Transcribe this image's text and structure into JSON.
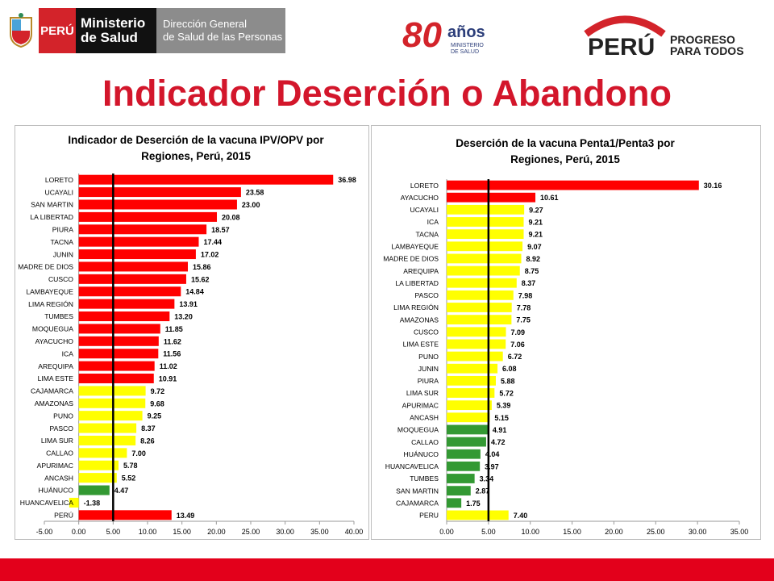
{
  "header": {
    "peru_label": "PERÚ",
    "ministry_line1": "Ministerio",
    "ministry_line2": "de Salud",
    "direction_line1": "Dirección General",
    "direction_line2": "de Salud de las Personas",
    "anniv_number": "80",
    "anniv_word": "años",
    "anniv_sub1": "MINISTERIO",
    "anniv_sub2": "DE SALUD",
    "brand_word": "PERÚ",
    "brand_slogan1": "PROGRESO",
    "brand_slogan2": "PARA TODOS"
  },
  "page_title": "Indicador Deserción o Abandono",
  "colors": {
    "high": "#ff0000",
    "medium": "#ffff00",
    "low": "#339933",
    "title_red": "#d3162b",
    "reference_line": "#000000"
  },
  "chart_data": [
    {
      "type": "bar",
      "orientation": "horizontal",
      "title": "Indicador de Deserción de la vacuna IPV/OPV por Regiones, Perú, 2015",
      "title_lines": [
        "Indicador de Deserción de la vacuna IPV/OPV por",
        "Regiones, Perú, 2015"
      ],
      "categories": [
        "LORETO",
        "UCAYALI",
        "SAN MARTIN",
        "LA LIBERTAD",
        "PIURA",
        "TACNA",
        "JUNIN",
        "MADRE DE DIOS",
        "CUSCO",
        "LAMBAYEQUE",
        "LIMA REGIÓN",
        "TUMBES",
        "MOQUEGUA",
        "AYACUCHO",
        "ICA",
        "AREQUIPA",
        "LIMA ESTE",
        "CAJAMARCA",
        "AMAZONAS",
        "PUNO",
        "PASCO",
        "LIMA SUR",
        "CALLAO",
        "APURIMAC",
        "ANCASH",
        "HUÁNUCO",
        "HUANCAVELICA",
        "PERÚ"
      ],
      "values": [
        36.98,
        23.58,
        23.0,
        20.08,
        18.57,
        17.44,
        17.02,
        15.86,
        15.62,
        14.84,
        13.91,
        13.2,
        11.85,
        11.62,
        11.56,
        11.02,
        10.91,
        9.72,
        9.68,
        9.25,
        8.37,
        8.26,
        7.0,
        5.78,
        5.52,
        4.47,
        -1.38,
        13.49
      ],
      "value_labels": [
        "36.98",
        "23.58",
        "23.00",
        "20.08",
        "18.57",
        "17.44",
        "17.02",
        "15.86",
        "15.62",
        "14.84",
        "13.91",
        "13.20",
        "11.85",
        "11.62",
        "11.56",
        "11.02",
        "10.91",
        "9.72",
        "9.68",
        "9.25",
        "8.37",
        "8.26",
        "7.00",
        "5.78",
        "5.52",
        "4.47",
        "-1.38",
        "13.49"
      ],
      "bar_colors": [
        "high",
        "high",
        "high",
        "high",
        "high",
        "high",
        "high",
        "high",
        "high",
        "high",
        "high",
        "high",
        "high",
        "high",
        "high",
        "high",
        "high",
        "medium",
        "medium",
        "medium",
        "medium",
        "medium",
        "medium",
        "medium",
        "medium",
        "low",
        "medium",
        "high"
      ],
      "xlim": [
        -5,
        40
      ],
      "xticks": [
        -5,
        0,
        5,
        10,
        15,
        20,
        25,
        30,
        35,
        40
      ],
      "xtick_labels": [
        "-5.00",
        "0.00",
        "5.00",
        "10.00",
        "15.00",
        "20.00",
        "25.00",
        "30.00",
        "35.00",
        "40.00"
      ],
      "reference_line": 5,
      "xlabel": "",
      "ylabel": ""
    },
    {
      "type": "bar",
      "orientation": "horizontal",
      "title": "Deserción de la vacuna Penta1/Penta3 por Regiones, Perú, 2015",
      "title_lines": [
        "Deserción de la vacuna Penta1/Penta3 por",
        "Regiones, Perú, 2015"
      ],
      "categories": [
        "LORETO",
        "AYACUCHO",
        "UCAYALI",
        "ICA",
        "TACNA",
        "LAMBAYEQUE",
        "MADRE DE DIOS",
        "AREQUIPA",
        "LA LIBERTAD",
        "PASCO",
        "LIMA REGIÓN",
        "AMAZONAS",
        "CUSCO",
        "LIMA ESTE",
        "PUNO",
        "JUNIN",
        "PIURA",
        "LIMA SUR",
        "APURIMAC",
        "ANCASH",
        "MOQUEGUA",
        "CALLAO",
        "HUÁNUCO",
        "HUANCAVELICA",
        "TUMBES",
        "SAN MARTIN",
        "CAJAMARCA",
        "PERU"
      ],
      "values": [
        30.16,
        10.61,
        9.27,
        9.21,
        9.21,
        9.07,
        8.92,
        8.75,
        8.37,
        7.98,
        7.78,
        7.75,
        7.09,
        7.06,
        6.72,
        6.08,
        5.88,
        5.72,
        5.39,
        5.15,
        4.91,
        4.72,
        4.04,
        3.97,
        3.34,
        2.87,
        1.75,
        7.4
      ],
      "value_labels": [
        "30.16",
        "10.61",
        "9.27",
        "9.21",
        "9.21",
        "9.07",
        "8.92",
        "8.75",
        "8.37",
        "7.98",
        "7.78",
        "7.75",
        "7.09",
        "7.06",
        "6.72",
        "6.08",
        "5.88",
        "5.72",
        "5.39",
        "5.15",
        "4.91",
        "4.72",
        "4.04",
        "3.97",
        "3.34",
        "2.87",
        "1.75",
        "7.40"
      ],
      "bar_colors": [
        "high",
        "high",
        "medium",
        "medium",
        "medium",
        "medium",
        "medium",
        "medium",
        "medium",
        "medium",
        "medium",
        "medium",
        "medium",
        "medium",
        "medium",
        "medium",
        "medium",
        "medium",
        "medium",
        "medium",
        "low",
        "low",
        "low",
        "low",
        "low",
        "low",
        "low",
        "medium"
      ],
      "xlim": [
        0,
        35
      ],
      "xticks": [
        0,
        5,
        10,
        15,
        20,
        25,
        30,
        35
      ],
      "xtick_labels": [
        "0.00",
        "5.00",
        "10.00",
        "15.00",
        "20.00",
        "25.00",
        "30.00",
        "35.00"
      ],
      "reference_line": 5,
      "xlabel": "",
      "ylabel": ""
    }
  ]
}
